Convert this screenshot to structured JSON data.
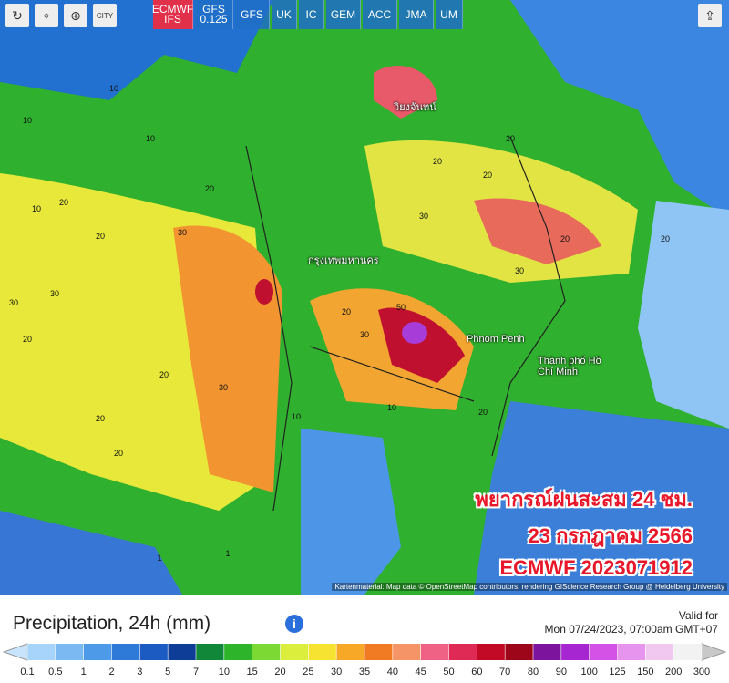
{
  "toolbar": {
    "buttons": [
      "ECMWF IFS",
      "GFS 0.125",
      "GFS",
      "UK",
      "IC",
      "GEM",
      "ACC",
      "JMA",
      "UM"
    ],
    "city_toggle": "CITY"
  },
  "map": {
    "overlay_lines": [
      "พยากรณ์ฝนสะสม 24 ชม.",
      "23 กรกฎาคม 2566",
      "ECMWF 2023071912"
    ],
    "cities": [
      "กรุงเทพมหานคร",
      "Phnom Penh",
      "Thành phố Hồ Chí Minh",
      "วิยงจันทน์"
    ],
    "contour_labels": [
      10,
      10,
      10,
      10,
      20,
      20,
      20,
      30,
      30,
      30,
      20,
      20,
      30,
      20,
      50,
      30,
      20,
      10,
      20,
      20,
      20,
      30,
      20,
      20,
      10,
      20,
      1,
      1,
      30,
      20
    ],
    "attribution": "Kartenmaterial: Map data © OpenStreetMap contributors, rendering GIScience Research Group @ Heidelberg University"
  },
  "legend": {
    "title": "Precipitation, 24h (mm)",
    "valid_label": "Valid for",
    "valid_time": "Mon 07/24/2023, 07:00am GMT+07",
    "ticks": [
      0.1,
      0.5,
      1,
      2,
      3,
      5,
      7,
      10,
      15,
      20,
      25,
      30,
      35,
      40,
      45,
      50,
      60,
      70,
      80,
      90,
      100,
      125,
      150,
      200,
      300
    ],
    "colors": [
      "#a6d4fa",
      "#7ab9f2",
      "#4c9ae8",
      "#2d7ad8",
      "#1c5cc2",
      "#0d3d96",
      "#11873a",
      "#2db42a",
      "#7cd832",
      "#dcee3c",
      "#f6e230",
      "#f7a826",
      "#f07b22",
      "#f59467",
      "#ef6185",
      "#de2a55",
      "#c20a26",
      "#9c0618",
      "#7c149e",
      "#a626d2",
      "#d453e6",
      "#e694ee",
      "#f0c8f0",
      "#f2f2f2"
    ]
  }
}
